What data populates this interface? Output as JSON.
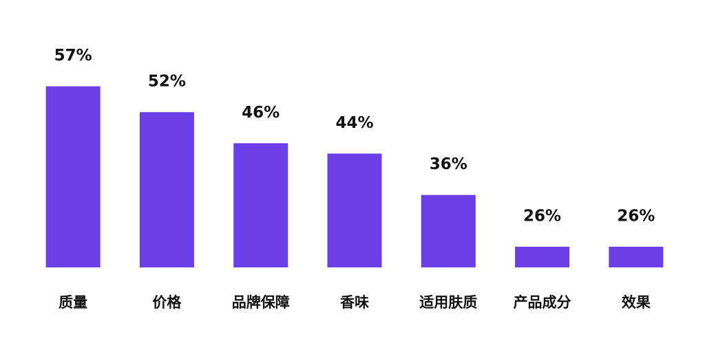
{
  "chart_data": {
    "type": "bar",
    "categories": [
      "质量",
      "价格",
      "品牌保障",
      "香味",
      "适用肤质",
      "产品成分",
      "效果"
    ],
    "values": [
      57,
      52,
      46,
      44,
      36,
      26,
      26
    ],
    "value_labels": [
      "57%",
      "52%",
      "46%",
      "44%",
      "36%",
      "26%",
      "26%"
    ],
    "color": "#6c3ee8",
    "ylim": [
      22,
      60
    ]
  }
}
